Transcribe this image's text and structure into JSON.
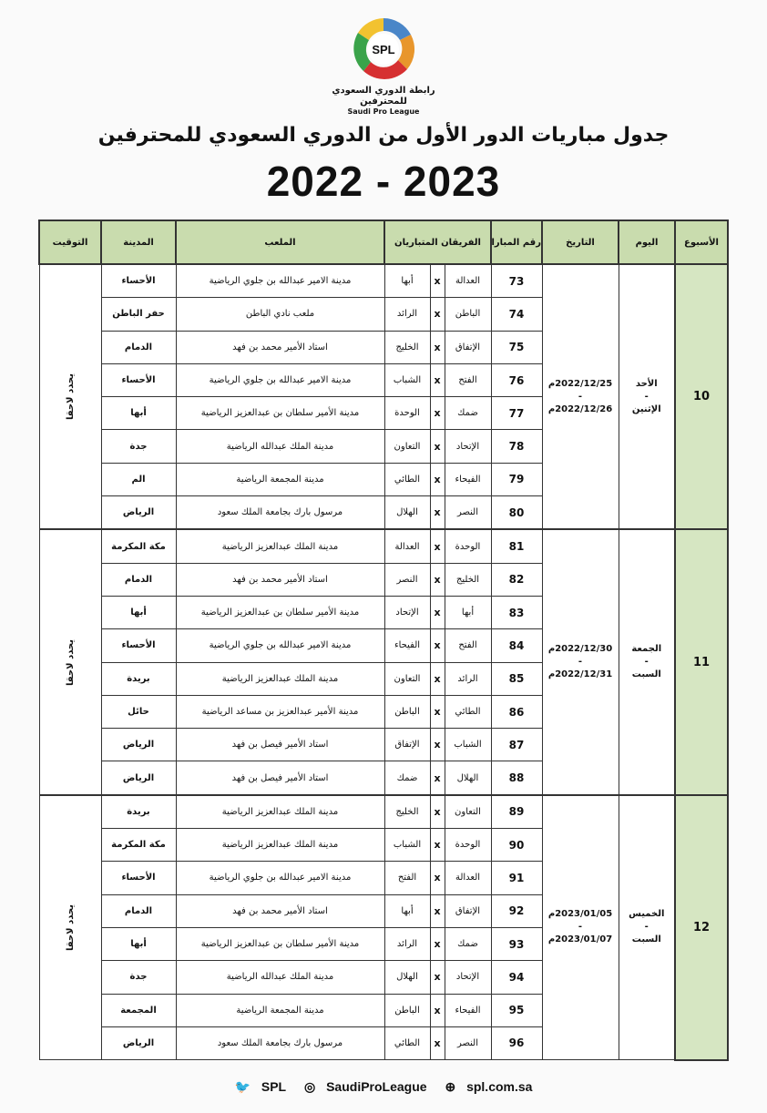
{
  "logo": {
    "arabic": "رابطة الدوري السعودي للمحترفين",
    "english": "Saudi Pro League",
    "mark": "SPL"
  },
  "title": "جدول مباريات الدور الأول من الدوري السعودي للمحترفين",
  "season": "2022 - 2023",
  "headers": {
    "week": "الأسبوع",
    "day": "اليوم",
    "date": "التاريخ",
    "match_no": "رقم المباراة",
    "teams": "الفريقان المتباريان",
    "stadium": "الملعب",
    "city": "المدينة",
    "time": "التوقيت"
  },
  "groups": [
    {
      "week": "10",
      "day": [
        "الأحد",
        "-",
        "الإثنين"
      ],
      "date": [
        "2022/12/25م",
        "-",
        "2022/12/26م"
      ],
      "time": "يحدد لاحقا",
      "matches": [
        {
          "no": "73",
          "home": "العدالة",
          "away": "أبها",
          "stadium": "مدينة الامير عبدالله بن جلوي الرياضية",
          "city": "الأحساء"
        },
        {
          "no": "74",
          "home": "الباطن",
          "away": "الرائد",
          "stadium": "ملعب نادي الباطن",
          "city": "حفر الباطن"
        },
        {
          "no": "75",
          "home": "الإتفاق",
          "away": "الخليج",
          "stadium": "استاد الأمير محمد بن فهد",
          "city": "الدمام"
        },
        {
          "no": "76",
          "home": "الفتح",
          "away": "الشباب",
          "stadium": "مدينة الامير عبدالله بن جلوي الرياضية",
          "city": "الأحساء"
        },
        {
          "no": "77",
          "home": "ضمك",
          "away": "الوحدة",
          "stadium": "مدينة الأمير سلطان بن عبدالعزيز الرياضية",
          "city": "أبها"
        },
        {
          "no": "78",
          "home": "الإتحاد",
          "away": "التعاون",
          "stadium": "مدينة الملك عبدالله الرياضية",
          "city": "جدة"
        },
        {
          "no": "79",
          "home": "الفيحاء",
          "away": "الطائي",
          "stadium": "مدينة المجمعة الرياضية",
          "city": "الم"
        },
        {
          "no": "80",
          "home": "النصر",
          "away": "الهلال",
          "stadium": "مرسول بارك بجامعة الملك سعود",
          "city": "الرياض"
        }
      ]
    },
    {
      "week": "11",
      "day": [
        "الجمعة",
        "-",
        "السبت"
      ],
      "date": [
        "2022/12/30م",
        "-",
        "2022/12/31م"
      ],
      "time": "يحدد لاحقا",
      "matches": [
        {
          "no": "81",
          "home": "الوحدة",
          "away": "العدالة",
          "stadium": "مدينة الملك عبدالعزيز الرياضية",
          "city": "مكة المكرمة"
        },
        {
          "no": "82",
          "home": "الخليج",
          "away": "النصر",
          "stadium": "استاد الأمير محمد بن فهد",
          "city": "الدمام"
        },
        {
          "no": "83",
          "home": "أبها",
          "away": "الإتحاد",
          "stadium": "مدينة الأمير سلطان بن عبدالعزيز الرياضية",
          "city": "أبها"
        },
        {
          "no": "84",
          "home": "الفتح",
          "away": "الفيحاء",
          "stadium": "مدينة الامير عبدالله بن جلوي الرياضية",
          "city": "الأحساء"
        },
        {
          "no": "85",
          "home": "الرائد",
          "away": "التعاون",
          "stadium": "مدينة الملك عبدالعزيز الرياضية",
          "city": "بريدة"
        },
        {
          "no": "86",
          "home": "الطائي",
          "away": "الباطن",
          "stadium": "مدينة الأمير عبدالعزيز بن مساعد الرياضية",
          "city": "حائل"
        },
        {
          "no": "87",
          "home": "الشباب",
          "away": "الإتفاق",
          "stadium": "استاد الأمير فيصل بن فهد",
          "city": "الرياض"
        },
        {
          "no": "88",
          "home": "الهلال",
          "away": "ضمك",
          "stadium": "استاد الأمير فيصل بن فهد",
          "city": "الرياض"
        }
      ]
    },
    {
      "week": "12",
      "day": [
        "الخميس",
        "-",
        "السبت"
      ],
      "date": [
        "2023/01/05م",
        "-",
        "2023/01/07م"
      ],
      "time": "يحدد لاحقا",
      "matches": [
        {
          "no": "89",
          "home": "التعاون",
          "away": "الخليج",
          "stadium": "مدينة الملك عبدالعزيز الرياضية",
          "city": "بريدة"
        },
        {
          "no": "90",
          "home": "الوحدة",
          "away": "الشباب",
          "stadium": "مدينة الملك عبدالعزيز الرياضية",
          "city": "مكة المكرمة"
        },
        {
          "no": "91",
          "home": "العدالة",
          "away": "الفتح",
          "stadium": "مدينة الامير عبدالله بن جلوي الرياضية",
          "city": "الأحساء"
        },
        {
          "no": "92",
          "home": "الإتفاق",
          "away": "أبها",
          "stadium": "استاد الأمير محمد بن فهد",
          "city": "الدمام"
        },
        {
          "no": "93",
          "home": "ضمك",
          "away": "الرائد",
          "stadium": "مدينة الأمير سلطان بن عبدالعزيز الرياضية",
          "city": "أبها"
        },
        {
          "no": "94",
          "home": "الإتحاد",
          "away": "الهلال",
          "stadium": "مدينة الملك عبدالله الرياضية",
          "city": "جدة"
        },
        {
          "no": "95",
          "home": "الفيحاء",
          "away": "الباطن",
          "stadium": "مدينة المجمعة الرياضية",
          "city": "المجمعة"
        },
        {
          "no": "96",
          "home": "النصر",
          "away": "الطائي",
          "stadium": "مرسول بارك بجامعة الملك سعود",
          "city": "الرياض"
        }
      ]
    }
  ],
  "vs_symbol": "x",
  "footer": {
    "twitter": "SPL",
    "instagram": "SaudiProLeague",
    "website": "spl.com.sa"
  },
  "colors": {
    "header_bg": "#c9dcae",
    "week_bg": "#d6e6c2"
  }
}
